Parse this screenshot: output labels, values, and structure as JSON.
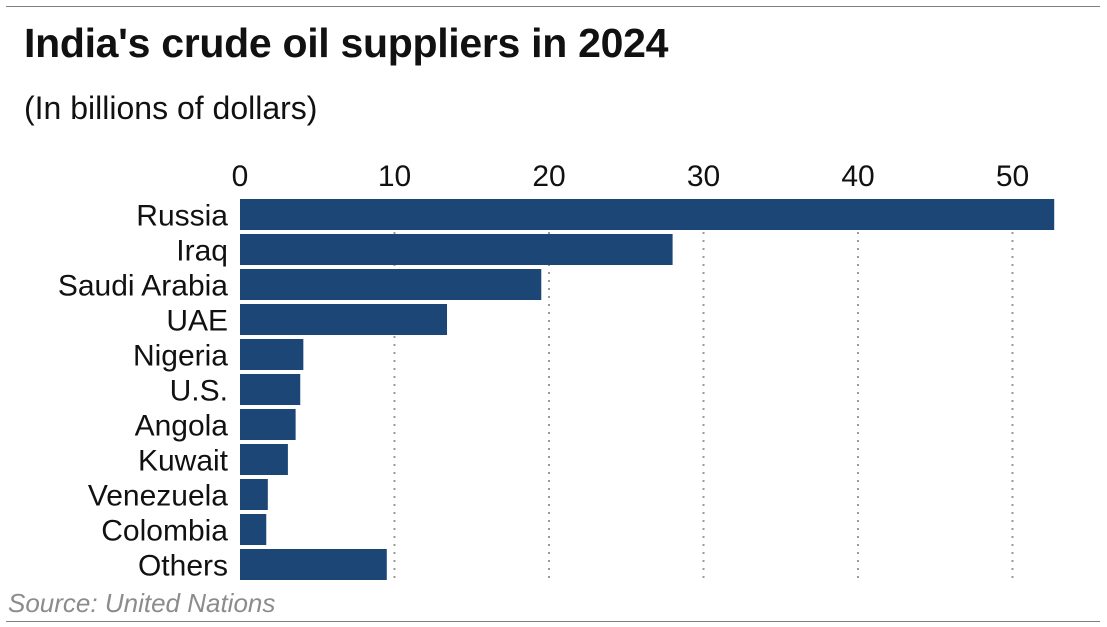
{
  "header": {
    "title": "India's crude oil suppliers in 2024",
    "subtitle": "(In billions of dollars)"
  },
  "footer": {
    "source": "Source: United Nations"
  },
  "colors": {
    "bar": "#1b4676",
    "grid": "#9a9a9a",
    "source_text": "#8c8c8c"
  },
  "chart_data": {
    "type": "bar",
    "orientation": "horizontal",
    "title": "India's crude oil suppliers in 2024",
    "subtitle": "(In billions of dollars)",
    "categories": [
      "Russia",
      "Iraq",
      "Saudi Arabia",
      "UAE",
      "Nigeria",
      "U.S.",
      "Angola",
      "Kuwait",
      "Venezuela",
      "Colombia",
      "Others"
    ],
    "values": [
      52.7,
      28.0,
      19.5,
      13.4,
      4.1,
      3.9,
      3.6,
      3.1,
      1.8,
      1.7,
      9.5
    ],
    "xticks": [
      0,
      10,
      20,
      30,
      40,
      50
    ],
    "xlim": [
      0,
      53
    ],
    "axis_position": "top",
    "grid": "vertical dotted",
    "legend": "none",
    "source": "Source: United Nations"
  }
}
